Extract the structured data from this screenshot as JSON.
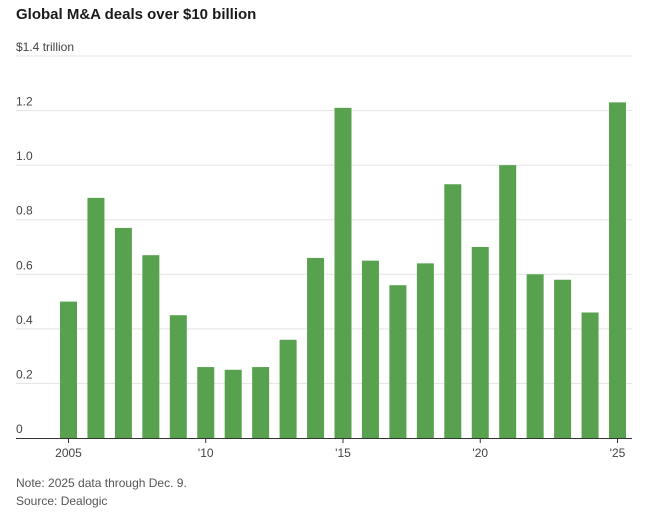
{
  "title": "Global M&A deals over $10 billion",
  "note": "Note: 2025 data through Dec. 9.",
  "source": "Source: Dealogic",
  "chart_data": {
    "type": "bar",
    "title": "Global M&A deals over $10 billion",
    "xlabel": "",
    "ylabel": "",
    "ylim": [
      0,
      1.4
    ],
    "grid": true,
    "bar_color": "#58a14e",
    "y_ticks": [
      {
        "value": 0,
        "label": "0"
      },
      {
        "value": 0.2,
        "label": "0.2"
      },
      {
        "value": 0.4,
        "label": "0.4"
      },
      {
        "value": 0.6,
        "label": "0.6"
      },
      {
        "value": 0.8,
        "label": "0.8"
      },
      {
        "value": 1.0,
        "label": "1.0"
      },
      {
        "value": 1.2,
        "label": "1.2"
      },
      {
        "value": 1.4,
        "label": "$1.4 trillion"
      }
    ],
    "x_ticks": [
      {
        "category": "2005",
        "label": "2005"
      },
      {
        "category": "2010",
        "label": "'10"
      },
      {
        "category": "2015",
        "label": "'15"
      },
      {
        "category": "2020",
        "label": "'20"
      },
      {
        "category": "2025",
        "label": "'25"
      }
    ],
    "categories": [
      "2005",
      "2006",
      "2007",
      "2008",
      "2009",
      "2010",
      "2011",
      "2012",
      "2013",
      "2014",
      "2015",
      "2016",
      "2017",
      "2018",
      "2019",
      "2020",
      "2021",
      "2022",
      "2023",
      "2024",
      "2025"
    ],
    "values": [
      0.5,
      0.88,
      0.77,
      0.67,
      0.45,
      0.26,
      0.25,
      0.26,
      0.36,
      0.66,
      1.21,
      0.65,
      0.56,
      0.64,
      0.93,
      0.7,
      1.0,
      0.6,
      0.58,
      0.46,
      1.23
    ]
  }
}
